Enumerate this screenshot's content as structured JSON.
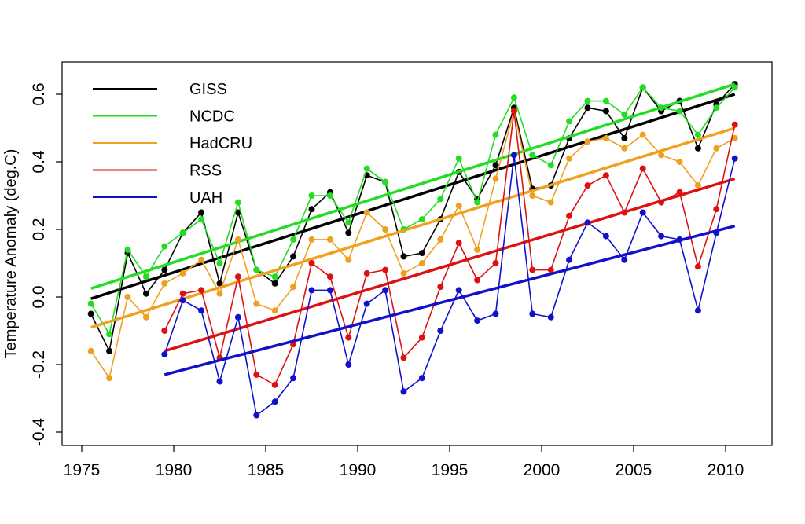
{
  "chart_data": {
    "type": "line",
    "title": "",
    "xlabel": "",
    "ylabel": "Temperature Anomaly (deg.C)",
    "xlim": [
      1975,
      2011
    ],
    "ylim": [
      -0.45,
      0.7
    ],
    "x_ticks": [
      1975,
      1980,
      1985,
      1990,
      1995,
      2000,
      2005,
      2010
    ],
    "x_tick_labels": [
      "1975",
      "1980",
      "1985",
      "1990",
      "1995",
      "2000",
      "2005",
      "2010"
    ],
    "y_ticks": [
      -0.4,
      -0.2,
      0.0,
      0.2,
      0.4,
      0.6
    ],
    "y_tick_labels": [
      "-0.4",
      "-0.2",
      "0.0",
      "0.2",
      "0.4",
      "0.6"
    ],
    "grid": false,
    "legend_position": "top-left",
    "series": [
      {
        "name": "GISS",
        "color": "#000000",
        "x": [
          1975.5,
          1976.5,
          1977.5,
          1978.5,
          1979.5,
          1980.5,
          1981.5,
          1982.5,
          1983.5,
          1984.5,
          1985.5,
          1986.5,
          1987.5,
          1988.5,
          1989.5,
          1990.5,
          1991.5,
          1992.5,
          1993.5,
          1994.5,
          1995.5,
          1996.5,
          1997.5,
          1998.5,
          1999.5,
          2000.5,
          2001.5,
          2002.5,
          2003.5,
          2004.5,
          2005.5,
          2006.5,
          2007.5,
          2008.5,
          2009.5,
          2010.5
        ],
        "y": [
          -0.05,
          -0.16,
          0.13,
          0.01,
          0.08,
          0.19,
          0.25,
          0.04,
          0.25,
          0.08,
          0.04,
          0.12,
          0.26,
          0.31,
          0.19,
          0.36,
          0.34,
          0.12,
          0.13,
          0.23,
          0.37,
          0.29,
          0.39,
          0.56,
          0.32,
          0.33,
          0.47,
          0.56,
          0.55,
          0.47,
          0.62,
          0.55,
          0.58,
          0.44,
          0.57,
          0.63
        ],
        "trend": [
          -0.005,
          0.6
        ]
      },
      {
        "name": "NCDC",
        "color": "#22dd22",
        "x": [
          1975.5,
          1976.5,
          1977.5,
          1978.5,
          1979.5,
          1980.5,
          1981.5,
          1982.5,
          1983.5,
          1984.5,
          1985.5,
          1986.5,
          1987.5,
          1988.5,
          1989.5,
          1990.5,
          1991.5,
          1992.5,
          1993.5,
          1994.5,
          1995.5,
          1996.5,
          1997.5,
          1998.5,
          1999.5,
          2000.5,
          2001.5,
          2002.5,
          2003.5,
          2004.5,
          2005.5,
          2006.5,
          2007.5,
          2008.5,
          2009.5,
          2010.5
        ],
        "y": [
          -0.02,
          -0.11,
          0.14,
          0.06,
          0.15,
          0.19,
          0.23,
          0.1,
          0.28,
          0.08,
          0.06,
          0.17,
          0.3,
          0.3,
          0.22,
          0.38,
          0.34,
          0.2,
          0.23,
          0.29,
          0.41,
          0.28,
          0.48,
          0.59,
          0.42,
          0.39,
          0.52,
          0.58,
          0.58,
          0.54,
          0.62,
          0.56,
          0.55,
          0.48,
          0.56,
          0.62
        ],
        "trend": [
          0.025,
          0.63
        ]
      },
      {
        "name": "HadCRU",
        "color": "#f0a020",
        "x": [
          1975.5,
          1976.5,
          1977.5,
          1978.5,
          1979.5,
          1980.5,
          1981.5,
          1982.5,
          1983.5,
          1984.5,
          1985.5,
          1986.5,
          1987.5,
          1988.5,
          1989.5,
          1990.5,
          1991.5,
          1992.5,
          1993.5,
          1994.5,
          1995.5,
          1996.5,
          1997.5,
          1998.5,
          1999.5,
          2000.5,
          2001.5,
          2002.5,
          2003.5,
          2004.5,
          2005.5,
          2006.5,
          2007.5,
          2008.5,
          2009.5,
          2010.5
        ],
        "y": [
          -0.16,
          -0.24,
          0.0,
          -0.06,
          0.04,
          0.07,
          0.11,
          0.01,
          0.17,
          -0.02,
          -0.04,
          0.03,
          0.17,
          0.17,
          0.11,
          0.25,
          0.2,
          0.07,
          0.1,
          0.17,
          0.27,
          0.14,
          0.35,
          0.55,
          0.3,
          0.28,
          0.41,
          0.46,
          0.47,
          0.44,
          0.48,
          0.42,
          0.4,
          0.33,
          0.44,
          0.47
        ],
        "trend": [
          -0.09,
          0.5
        ]
      },
      {
        "name": "RSS",
        "color": "#dd1111",
        "x": [
          1979.5,
          1980.5,
          1981.5,
          1982.5,
          1983.5,
          1984.5,
          1985.5,
          1986.5,
          1987.5,
          1988.5,
          1989.5,
          1990.5,
          1991.5,
          1992.5,
          1993.5,
          1994.5,
          1995.5,
          1996.5,
          1997.5,
          1998.5,
          1999.5,
          2000.5,
          2001.5,
          2002.5,
          2003.5,
          2004.5,
          2005.5,
          2006.5,
          2007.5,
          2008.5,
          2009.5,
          2010.5
        ],
        "y": [
          -0.1,
          0.01,
          0.02,
          -0.18,
          0.06,
          -0.23,
          -0.26,
          -0.14,
          0.1,
          0.06,
          -0.12,
          0.07,
          0.08,
          -0.18,
          -0.12,
          0.03,
          0.16,
          0.05,
          0.1,
          0.55,
          0.08,
          0.08,
          0.24,
          0.33,
          0.36,
          0.25,
          0.38,
          0.28,
          0.31,
          0.09,
          0.26,
          0.51
        ],
        "trend": [
          -0.16,
          0.35
        ]
      },
      {
        "name": "UAH",
        "color": "#1111cc",
        "x": [
          1979.5,
          1980.5,
          1981.5,
          1982.5,
          1983.5,
          1984.5,
          1985.5,
          1986.5,
          1987.5,
          1988.5,
          1989.5,
          1990.5,
          1991.5,
          1992.5,
          1993.5,
          1994.5,
          1995.5,
          1996.5,
          1997.5,
          1998.5,
          1999.5,
          2000.5,
          2001.5,
          2002.5,
          2003.5,
          2004.5,
          2005.5,
          2006.5,
          2007.5,
          2008.5,
          2009.5,
          2010.5
        ],
        "y": [
          -0.17,
          -0.01,
          -0.04,
          -0.25,
          -0.06,
          -0.35,
          -0.31,
          -0.24,
          0.02,
          0.02,
          -0.2,
          -0.02,
          0.02,
          -0.28,
          -0.24,
          -0.1,
          0.02,
          -0.07,
          -0.05,
          0.42,
          -0.05,
          -0.06,
          0.11,
          0.22,
          0.18,
          0.11,
          0.25,
          0.18,
          0.17,
          -0.04,
          0.19,
          0.41
        ],
        "trend": [
          -0.23,
          0.21
        ]
      }
    ]
  }
}
